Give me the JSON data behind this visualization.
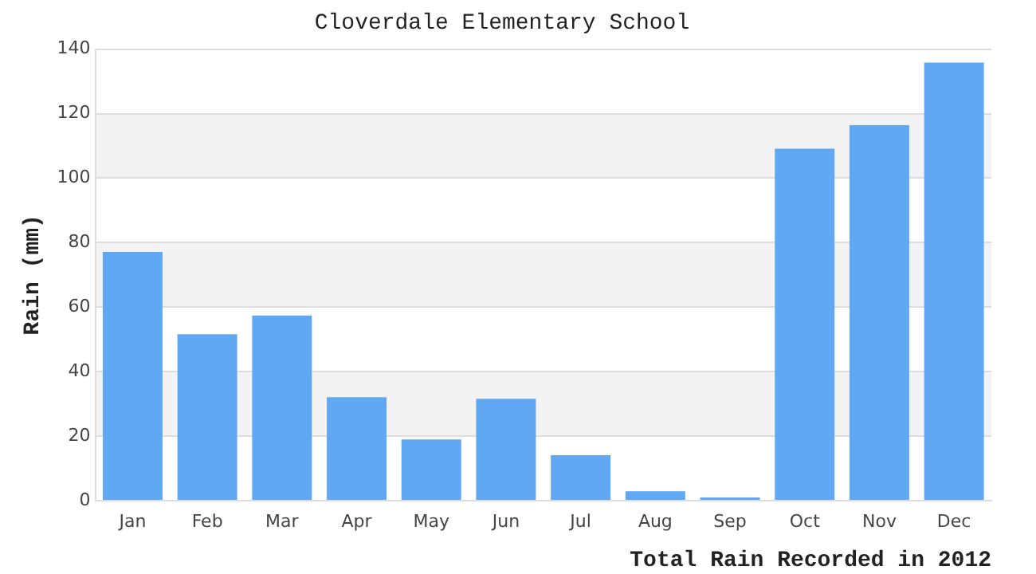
{
  "chart_data": {
    "type": "bar",
    "title": "Cloverdale Elementary School",
    "xlabel": "Total Rain Recorded in 2012",
    "ylabel": "Rain (mm)",
    "categories": [
      "Jan",
      "Feb",
      "Mar",
      "Apr",
      "May",
      "Jun",
      "Jul",
      "Aug",
      "Sep",
      "Oct",
      "Nov",
      "Dec"
    ],
    "values": [
      77.1,
      51.6,
      57.4,
      32.1,
      19.0,
      31.6,
      14.1,
      2.9,
      1.0,
      109.1,
      116.4,
      135.8
    ],
    "color": "#60a8f4",
    "ylim": [
      0,
      140
    ],
    "yticks": [
      0,
      20,
      40,
      60,
      80,
      100,
      120,
      140
    ],
    "grid": "y",
    "legend": false
  }
}
